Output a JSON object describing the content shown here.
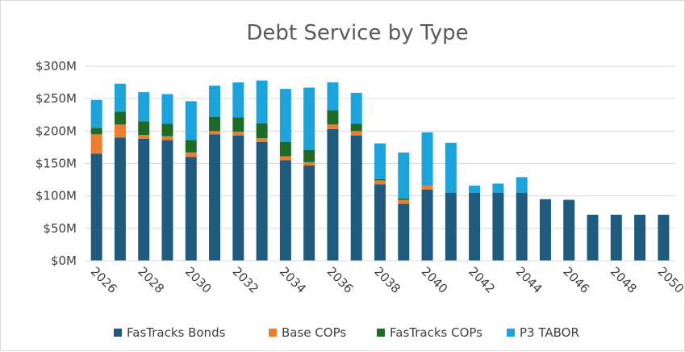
{
  "chart_data": {
    "type": "bar",
    "stacked": true,
    "title": "Debt Service by Type",
    "xlabel": "",
    "ylabel": "",
    "categories": [
      "2026",
      "2027",
      "2028",
      "2029",
      "2030",
      "2031",
      "2032",
      "2033",
      "2034",
      "2035",
      "2036",
      "2037",
      "2038",
      "2039",
      "2040",
      "2041",
      "2042",
      "2043",
      "2044",
      "2045",
      "2046",
      "2047",
      "2048",
      "2049",
      "2050"
    ],
    "x_tick_labels": [
      "2026",
      "2028",
      "2030",
      "2032",
      "2034",
      "2036",
      "2038",
      "2040",
      "2042",
      "2044",
      "2046",
      "2048",
      "2050"
    ],
    "y_tick_labels": [
      "$0M",
      "$50M",
      "$100M",
      "$150M",
      "$200M",
      "$250M",
      "$300M"
    ],
    "ylim": [
      0,
      300
    ],
    "y_unit": "$M",
    "grid": "horizontal",
    "legend_position": "bottom",
    "series": [
      {
        "name": "FasTracks Bonds",
        "color": "#1f5b7f",
        "values": [
          165,
          190,
          188,
          186,
          160,
          195,
          193,
          183,
          155,
          147,
          203,
          193,
          118,
          88,
          110,
          105,
          105,
          105,
          105,
          95,
          94,
          71,
          71,
          71,
          71
        ]
      },
      {
        "name": "Base COPs",
        "color": "#ed7d31",
        "values": [
          30,
          20,
          6,
          6,
          7,
          5,
          6,
          6,
          6,
          5,
          7,
          7,
          6,
          6,
          6,
          0,
          0,
          0,
          0,
          0,
          0,
          0,
          0,
          0,
          0
        ]
      },
      {
        "name": "FasTracks COPs",
        "color": "#1e6b27",
        "values": [
          10,
          20,
          21,
          19,
          19,
          22,
          22,
          23,
          22,
          19,
          22,
          11,
          2,
          2,
          0,
          0,
          0,
          0,
          0,
          0,
          0,
          0,
          0,
          0,
          0
        ]
      },
      {
        "name": "P3 TABOR",
        "color": "#1ca3dc",
        "values": [
          43,
          43,
          45,
          46,
          60,
          48,
          54,
          66,
          82,
          96,
          43,
          48,
          55,
          71,
          82,
          77,
          11,
          14,
          24,
          0,
          0,
          0,
          0,
          0,
          0
        ]
      }
    ]
  }
}
